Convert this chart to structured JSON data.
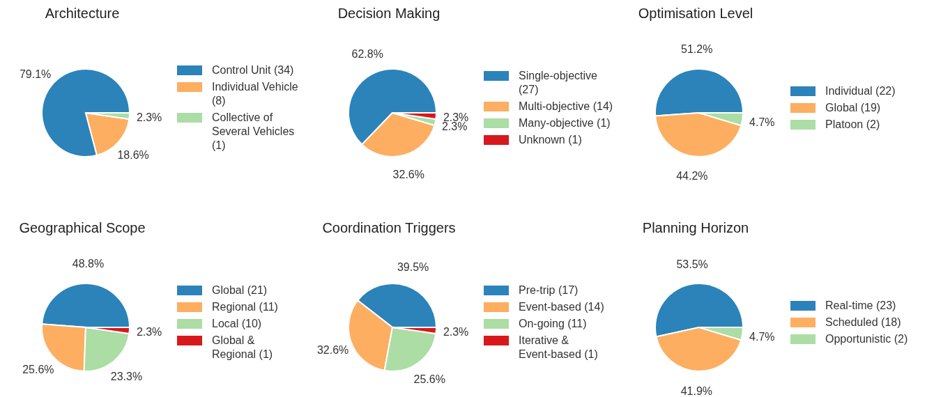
{
  "chart_data": [
    {
      "type": "pie",
      "title": "Architecture",
      "categories": [
        "Control Unit (34)",
        "Individual Vehicle (8)",
        "Collective of\nSeveral Vehicles (1)"
      ],
      "values": [
        79.1,
        18.6,
        2.3
      ],
      "colors": [
        "#2b83ba",
        "#fdae61",
        "#abdda4"
      ],
      "value_labels": [
        "79.1%",
        "18.6%",
        "2.3%"
      ],
      "legend": "right"
    },
    {
      "type": "pie",
      "title": "Decision Making",
      "categories": [
        "Single-objective (27)",
        "Multi-objective (14)",
        "Many-objective (1)",
        "Unknown (1)"
      ],
      "values": [
        62.8,
        32.6,
        2.3,
        2.3
      ],
      "colors": [
        "#2b83ba",
        "#fdae61",
        "#abdda4",
        "#d7191c"
      ],
      "value_labels": [
        "62.8%",
        "32.6%",
        "2.3%",
        "2.3%"
      ],
      "legend": "right"
    },
    {
      "type": "pie",
      "title": "Optimisation Level",
      "categories": [
        "Individual (22)",
        "Global (19)",
        "Platoon (2)"
      ],
      "values": [
        51.2,
        44.2,
        4.7
      ],
      "colors": [
        "#2b83ba",
        "#fdae61",
        "#abdda4"
      ],
      "value_labels": [
        "51.2%",
        "44.2%",
        "4.7%"
      ],
      "legend": "right"
    },
    {
      "type": "pie",
      "title": "Geographical Scope",
      "categories": [
        "Global (21)",
        "Regional (11)",
        "Local (10)",
        "Global &\nRegional (1)"
      ],
      "values": [
        48.8,
        25.6,
        23.3,
        2.3
      ],
      "colors": [
        "#2b83ba",
        "#fdae61",
        "#abdda4",
        "#d7191c"
      ],
      "value_labels": [
        "48.8%",
        "25.6%",
        "23.3%",
        "2.3%"
      ],
      "legend": "right"
    },
    {
      "type": "pie",
      "title": "Coordination Triggers",
      "categories": [
        "Pre-trip (17)",
        "Event-based (14)",
        "On-going (11)",
        "Iterative &\nEvent-based (1)"
      ],
      "values": [
        39.5,
        32.6,
        25.6,
        2.3
      ],
      "colors": [
        "#2b83ba",
        "#fdae61",
        "#abdda4",
        "#d7191c"
      ],
      "value_labels": [
        "39.5%",
        "32.6%",
        "25.6%",
        "2.3%"
      ],
      "legend": "right"
    },
    {
      "type": "pie",
      "title": "Planning Horizon",
      "categories": [
        "Real-time (23)",
        "Scheduled (18)",
        "Opportunistic (2)"
      ],
      "values": [
        53.5,
        41.9,
        4.7
      ],
      "colors": [
        "#2b83ba",
        "#fdae61",
        "#abdda4"
      ],
      "value_labels": [
        "53.5%",
        "41.9%",
        "4.7%"
      ],
      "legend": "right"
    }
  ]
}
